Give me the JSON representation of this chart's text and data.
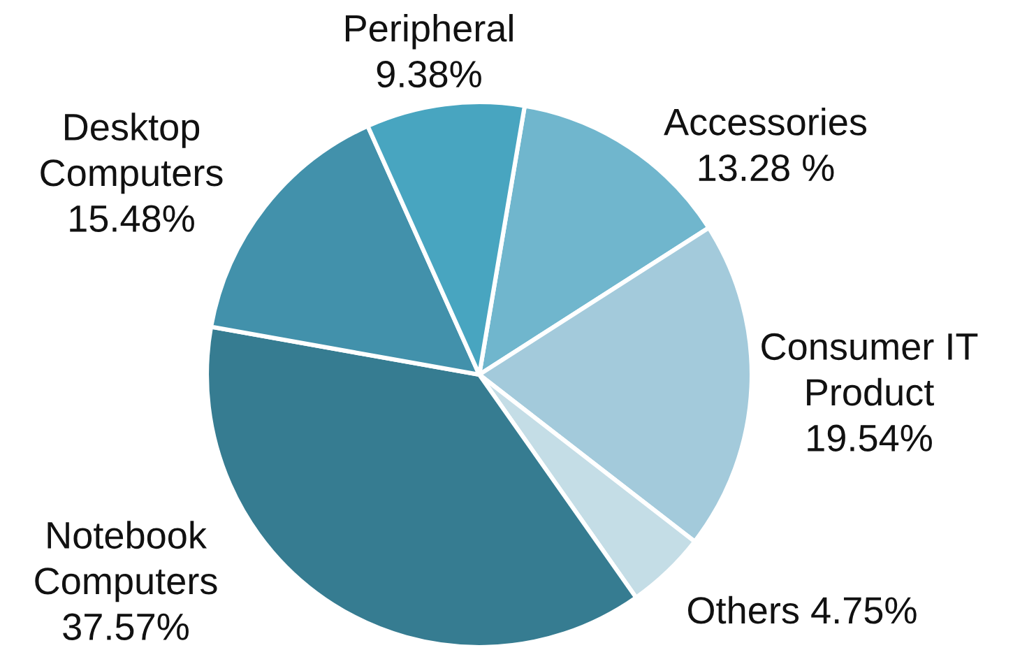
{
  "chart_data": {
    "type": "pie",
    "categories": [
      "Accessories",
      "Consumer IT Product",
      "Others",
      "Notebook Computers",
      "Desktop Computers",
      "Peripheral"
    ],
    "values": [
      13.28,
      19.54,
      4.75,
      37.57,
      15.48,
      9.38
    ],
    "value_labels": [
      "13.28 %",
      "19.54%",
      "4.75%",
      "37.57%",
      "15.48%",
      "9.38%"
    ],
    "colors": [
      "#70b6cd",
      "#a3cadb",
      "#c4dde6",
      "#367c91",
      "#4291ab",
      "#48a5c0"
    ]
  }
}
